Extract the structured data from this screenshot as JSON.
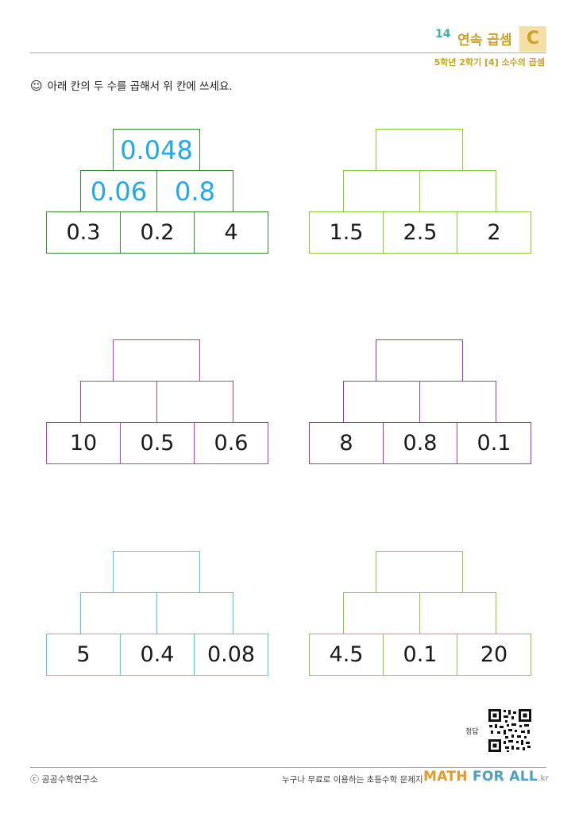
{
  "header": {
    "number": "14",
    "title": "연속 곱셈",
    "level": "C",
    "subtitle": "5학년 2학기 [4] 소수의 곱셈"
  },
  "instruction": {
    "icon": "smiley-icon",
    "text": "아래 칸의 두 수를 곱해서 위 칸에 쓰세요."
  },
  "pyramids": [
    {
      "color": "#3a8a3a",
      "bottom": [
        "0.3",
        "0.2",
        "4"
      ],
      "middle": [
        "0.06",
        "0.8"
      ],
      "top": "0.048"
    },
    {
      "color": "#8fcc3a",
      "bottom": [
        "1.5",
        "2.5",
        "2"
      ],
      "middle": [
        "",
        ""
      ],
      "top": ""
    },
    {
      "color": "#c03ac0",
      "bottom": [
        "10",
        "0.5",
        "0.6"
      ],
      "middle": [
        "",
        ""
      ],
      "top": ""
    },
    {
      "color": "#9a3ac0",
      "bottom": [
        "8",
        "0.8",
        "0.1"
      ],
      "middle": [
        "",
        ""
      ],
      "top": ""
    },
    {
      "color": "#3ad8e0",
      "bottom": [
        "5",
        "0.4",
        "0.08"
      ],
      "middle": [
        "",
        ""
      ],
      "top": ""
    },
    {
      "color": "#8fcc3a",
      "bottom": [
        "4.5",
        "0.1",
        "20"
      ],
      "middle": [
        "",
        ""
      ],
      "top": ""
    }
  ],
  "answer_label": "정답",
  "footer": {
    "copyright": "ⓒ 공공수학연구소",
    "tagline": "누구나 무료로 이용하는 초등수학 문제지",
    "brand_math": "MATH",
    "brand_forall": "FOR ALL",
    "brand_kr": ".kr"
  }
}
